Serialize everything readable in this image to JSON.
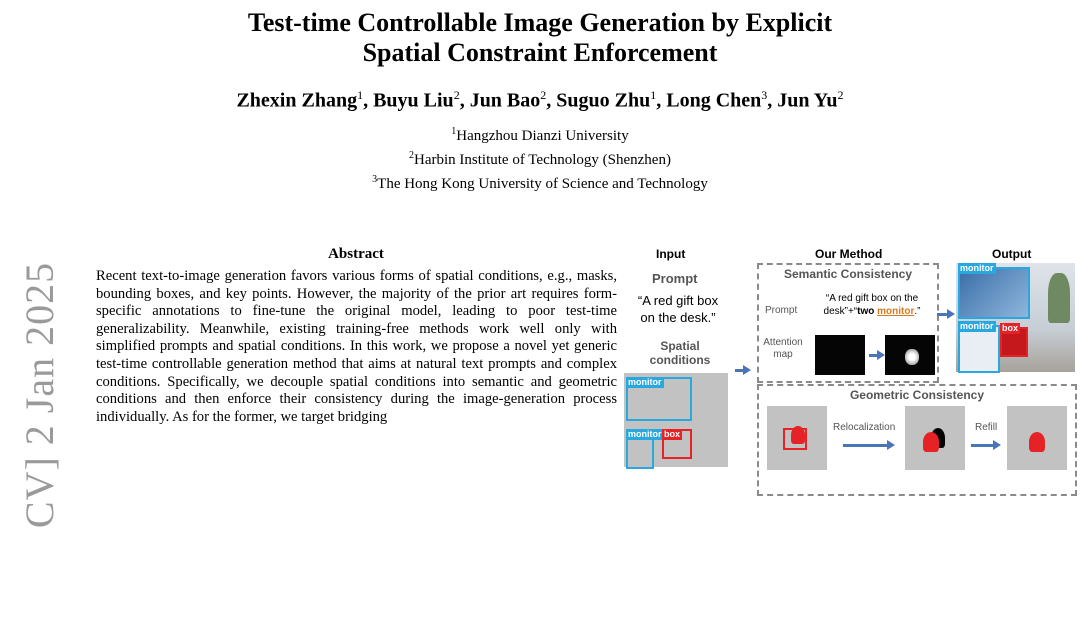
{
  "paper": {
    "title_line1": "Test-time Controllable Image Generation by Explicit",
    "title_line2": "Spatial Constraint Enforcement",
    "authors": [
      {
        "name": "Zhexin Zhang",
        "aff": "1",
        "sep": ", "
      },
      {
        "name": "Buyu Liu",
        "aff": "2",
        "sep": ", "
      },
      {
        "name": "Jun Bao",
        "aff": "2",
        "sep": ", "
      },
      {
        "name": "Suguo Zhu",
        "aff": "1",
        "sep": ", "
      },
      {
        "name": "Long Chen",
        "aff": "3",
        "sep": ", "
      },
      {
        "name": "Jun Yu",
        "aff": "2",
        "sep": ""
      }
    ],
    "affiliations": [
      {
        "num": "1",
        "name": "Hangzhou Dianzi University"
      },
      {
        "num": "2",
        "name": "Harbin Institute of Technology (Shenzhen)"
      },
      {
        "num": "3",
        "name": "The Hong Kong University of Science and Technology"
      }
    ],
    "arxiv_stamp": "CV]  2 Jan 2025",
    "abstract_heading": "Abstract",
    "abstract_text": "Recent text-to-image generation favors various forms of spatial conditions, e.g., masks, bounding boxes, and key points. However, the majority of the prior art requires form-specific annotations to fine-tune the original model, leading to poor test-time generalizability. Meanwhile, existing training-free methods work well only with simplified prompts and spatial conditions. In this work, we propose a novel yet generic test-time controllable generation method that aims at natural text prompts and complex conditions. Specifically, we decouple spatial conditions into semantic and geometric conditions and then enforce their consistency during the image-generation process individually. As for the former, we target bridging"
  },
  "figure": {
    "col_input": "Input",
    "col_method": "Our Method",
    "col_output": "Output",
    "prompt_heading": "Prompt",
    "prompt_text_1": "“A red gift box",
    "prompt_text_2": "on the desk.”",
    "spatial_heading_1": "Spatial",
    "spatial_heading_2": "conditions",
    "semantic_title": "Semantic Consistency",
    "sem_prompt_label": "Prompt",
    "sem_prompt_line1": "“A red gift box on the",
    "sem_prompt_line2a": "desk”+“",
    "sem_prompt_two": "two",
    "sem_prompt_monitor": "monitor",
    "sem_prompt_end": ".”",
    "attention_label_1": "Attention",
    "attention_label_2": "map",
    "geometric_title": "Geometric Consistency",
    "relocalization": "Relocalization",
    "refill": "Refill",
    "label_monitor": "monitor",
    "label_box": "box",
    "colors": {
      "monitor_box": "#29a8e0",
      "gift_box": "#e52225",
      "monitor_word": "#d77a1e",
      "arrow": "#4a74b8"
    }
  }
}
